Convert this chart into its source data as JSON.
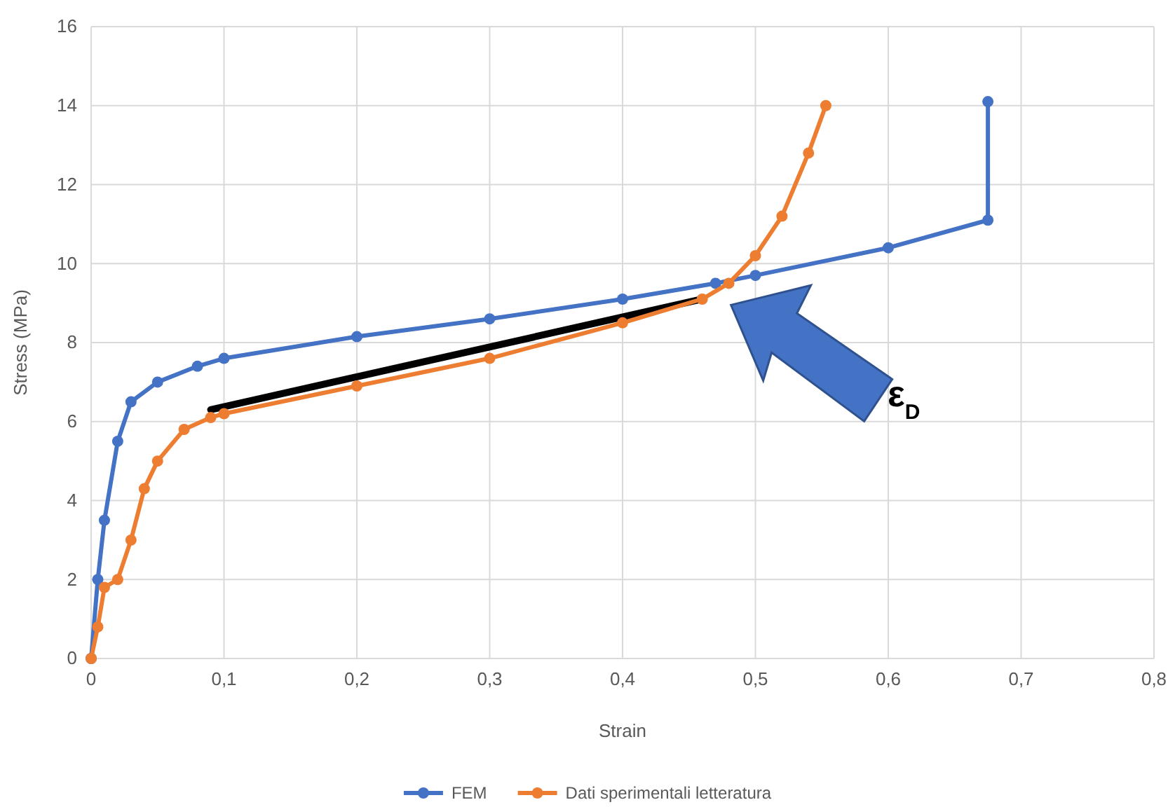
{
  "chart_data": {
    "type": "line",
    "xlabel": "Strain",
    "ylabel": "Stress (MPa)",
    "xlim": [
      0,
      0.8
    ],
    "xticks": [
      0,
      {
        "value": 0.1,
        "label": "0,1"
      },
      {
        "value": 0.2,
        "label": "0,2"
      },
      {
        "value": 0.3,
        "label": "0,3"
      },
      {
        "value": 0.4,
        "label": "0,4"
      },
      {
        "value": 0.5,
        "label": "0,5"
      },
      {
        "value": 0.6,
        "label": "0,6"
      },
      {
        "value": 0.7,
        "label": "0,7"
      },
      {
        "value": 0.8,
        "label": "0,8"
      }
    ],
    "ylim": [
      0,
      16
    ],
    "yticks": [
      0,
      2,
      4,
      6,
      8,
      10,
      12,
      14,
      16
    ],
    "grid": true,
    "legend": "bottom",
    "marker": "circle",
    "annotations": [
      "ε$_{D}$"
    ],
    "series": [
      {
        "color": "#000000",
        "marker": "none",
        "x": [
          0.09,
          0.46
        ],
        "values": [
          6.3,
          9.1
        ]
      },
      {
        "name": "FEM",
        "color": "#4472c4",
        "x": [
          0,
          0.005,
          0.01,
          0.02,
          0.03,
          0.05,
          0.08,
          0.1,
          0.2,
          0.3,
          0.4,
          0.47,
          0.5,
          0.6,
          0.675,
          0.675
        ],
        "values": [
          0,
          2,
          3.5,
          5.5,
          6.5,
          7.0,
          7.4,
          7.6,
          8.15,
          8.6,
          9.1,
          9.5,
          9.7,
          10.4,
          11.1,
          14.1
        ]
      },
      {
        "name": "Dati sperimentali letteratura",
        "color": "#ed7d31",
        "x": [
          0,
          0.005,
          0.01,
          0.02,
          0.03,
          0.04,
          0.05,
          0.07,
          0.09,
          0.1,
          0.2,
          0.3,
          0.4,
          0.46,
          0.48,
          0.5,
          0.52,
          0.54,
          0.553
        ],
        "values": [
          0,
          0.8,
          1.8,
          2.0,
          3.0,
          4.3,
          5.0,
          5.8,
          6.1,
          6.2,
          6.9,
          7.6,
          8.5,
          9.1,
          9.5,
          10.2,
          11.2,
          12.8,
          14.0
        ]
      }
    ]
  }
}
